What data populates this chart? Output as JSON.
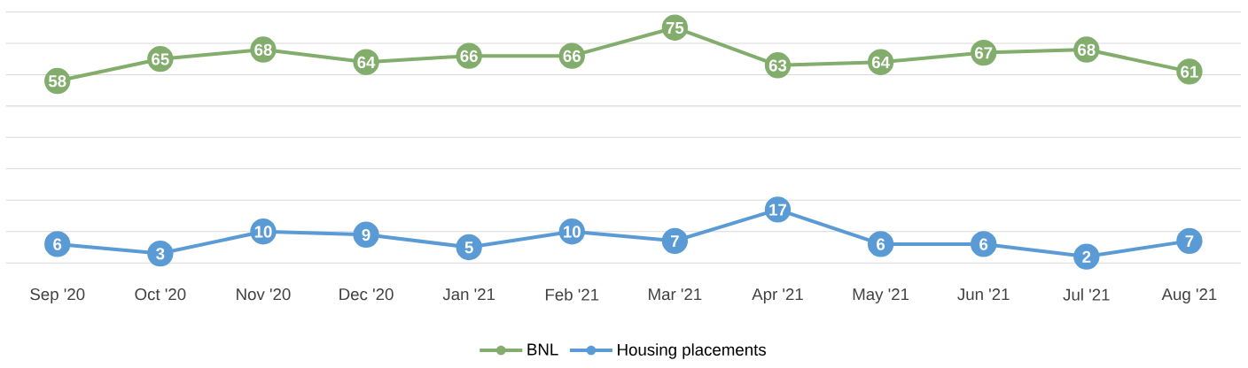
{
  "chart_data": {
    "type": "line",
    "categories": [
      "Sep '20",
      "Oct '20",
      "Nov '20",
      "Dec '20",
      "Jan '21",
      "Feb '21",
      "Mar '21",
      "Apr '21",
      "May '21",
      "Jun '21",
      "Jul '21",
      "Aug '21"
    ],
    "series": [
      {
        "name": "BNL",
        "color": "#82ad6c",
        "values": [
          58,
          65,
          68,
          64,
          66,
          66,
          75,
          63,
          64,
          67,
          68,
          61
        ]
      },
      {
        "name": "Housing placements",
        "color": "#5b9bd5",
        "values": [
          6,
          3,
          10,
          9,
          5,
          10,
          7,
          17,
          6,
          6,
          2,
          7
        ]
      }
    ],
    "tick_labels": "x",
    "grid": "y",
    "legend": "bottom",
    "marker": "circle",
    "line_style": "solid",
    "data_labels": true
  }
}
